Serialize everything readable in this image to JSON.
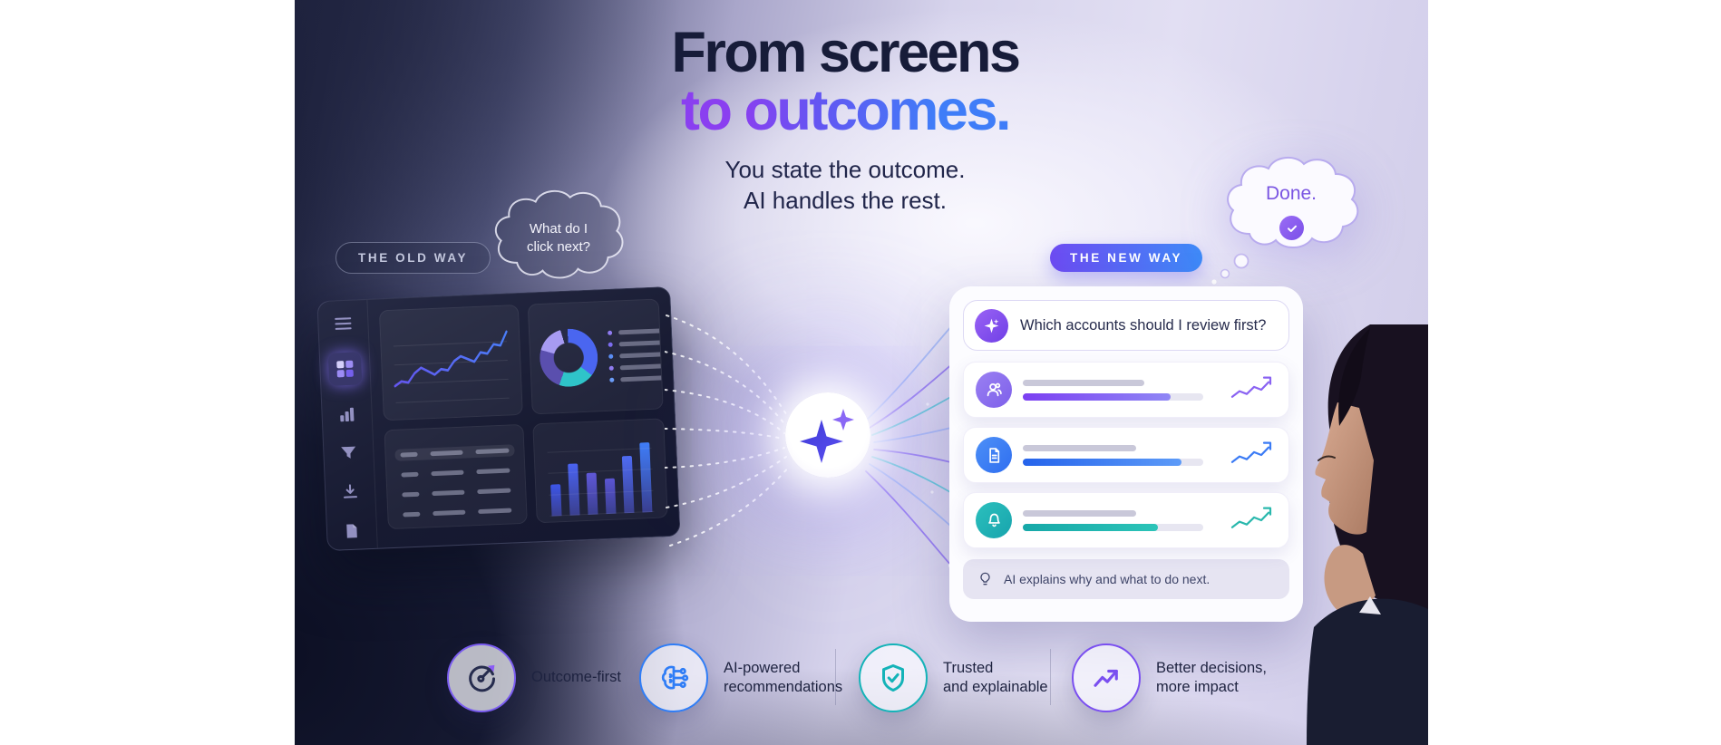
{
  "hero": {
    "title_line1": "From screens",
    "title_line2": "to outcomes.",
    "subtitle_line1": "You state the outcome.",
    "subtitle_line2": "AI handles the rest."
  },
  "old_way": {
    "badge_label": "THE OLD WAY",
    "thought_line1": "What do I",
    "thought_line2": "click next?"
  },
  "new_way": {
    "badge_label": "THE NEW WAY",
    "done_text": "Done.",
    "query_text": "Which accounts should I review first?",
    "footer_text": "AI explains why and what to do next.",
    "rows": [
      {
        "icon": "users-icon",
        "icon_color1": "#9a80f2",
        "icon_color2": "#7e60ea",
        "top_bar_pct": 62,
        "fill_pct": 82,
        "fill_from": "#7b3ff2",
        "fill_to": "#8f87f5",
        "spark_color": "#8a63f2"
      },
      {
        "icon": "document-icon",
        "icon_color1": "#4d90f7",
        "icon_color2": "#2f6ef0",
        "top_bar_pct": 58,
        "fill_pct": 88,
        "fill_from": "#2563eb",
        "fill_to": "#5d9bf8",
        "spark_color": "#3b7bf5"
      },
      {
        "icon": "bell-icon",
        "icon_color1": "#2cc0bd",
        "icon_color2": "#17a4ad",
        "top_bar_pct": 58,
        "fill_pct": 75,
        "fill_from": "#16a8a8",
        "fill_to": "#2cc4b8",
        "spark_color": "#2ab8ad"
      }
    ]
  },
  "features": [
    {
      "icon": "target-arrow-icon",
      "accent": "#7a5cf0",
      "label_line1": "Outcome-first",
      "label_line2": ""
    },
    {
      "icon": "brain-circuit-icon",
      "accent": "#2f7df6",
      "label_line1": "AI-powered",
      "label_line2": "recommendations"
    },
    {
      "icon": "shield-check-icon",
      "accent": "#14b3b8",
      "label_line1": "Trusted",
      "label_line2": "and explainable"
    },
    {
      "icon": "trend-up-icon",
      "accent": "#7a4ff0",
      "label_line1": "Better decisions,",
      "label_line2": "more impact"
    }
  ],
  "dashboard": {
    "sidebar_icons": [
      "menu-icon",
      "grid-dashboard-icon",
      "bar-chart-icon",
      "filter-icon",
      "download-icon",
      "file-icon"
    ],
    "active_sidebar_icon": "grid-dashboard-icon",
    "legend_dot_colors": [
      "#8f7bf0",
      "#7c6cf0",
      "#5a8df5",
      "#8f7bf0",
      "#6b9df8"
    ],
    "legend_bar_widths": [
      58,
      80,
      62,
      84,
      66
    ],
    "table_header_width": 62,
    "table_rows": [
      [
        30,
        56,
        58
      ],
      [
        30,
        56,
        58
      ],
      [
        30,
        56,
        58
      ],
      [
        30,
        56,
        58
      ]
    ],
    "bar_colors": [
      "#3d56e8",
      "#4a63f0",
      "#6058d8",
      "#5b55d4",
      "#4f6cf2",
      "#3f7df8"
    ]
  },
  "chart_data": [
    {
      "type": "line",
      "name": "old-way-line-chart",
      "x": [
        0,
        1,
        2,
        3,
        4,
        5,
        6,
        7,
        8,
        9,
        10,
        11,
        12,
        13,
        14,
        15,
        16,
        17
      ],
      "values": [
        22,
        28,
        26,
        38,
        45,
        40,
        35,
        42,
        40,
        52,
        58,
        54,
        50,
        62,
        60,
        72,
        70,
        88
      ],
      "title": "",
      "xlabel": "",
      "ylabel": "",
      "ylim": [
        0,
        100
      ],
      "grid": true,
      "legend_position": "none",
      "line_color_from": "#6456f0",
      "line_color_to": "#4a7df8"
    },
    {
      "type": "pie",
      "name": "old-way-donut-chart",
      "segments": [
        {
          "color": "#4a66f0",
          "value": 36
        },
        {
          "color": "#2fc4c9",
          "value": 20
        },
        {
          "color": "#5a4fae",
          "value": 24
        },
        {
          "color": "#a79bf2",
          "value": 16
        },
        {
          "color": "#272b47",
          "value": 4
        }
      ],
      "donut": true
    },
    {
      "type": "bar",
      "name": "old-way-bar-chart",
      "categories": [
        "1",
        "2",
        "3",
        "4",
        "5",
        "6"
      ],
      "values": [
        45,
        73,
        59,
        51,
        81,
        100
      ],
      "ylim": [
        0,
        100
      ],
      "grid": true
    },
    {
      "type": "line",
      "name": "answer-row-sparkline",
      "x": [
        0,
        1,
        2,
        3,
        4,
        5
      ],
      "values": [
        20,
        44,
        32,
        62,
        50,
        82
      ],
      "grid": false
    }
  ],
  "colors": {
    "headline_dark": "#171c39",
    "gradient_purple": "#8a3ff0",
    "gradient_blue": "#3f7df8",
    "new_badge_from": "#6d4bf2",
    "new_badge_to": "#3e8bf8",
    "done_text": "#7a55e2",
    "teal": "#2cc4b8",
    "dashboard_bg": "#1b1e36"
  }
}
